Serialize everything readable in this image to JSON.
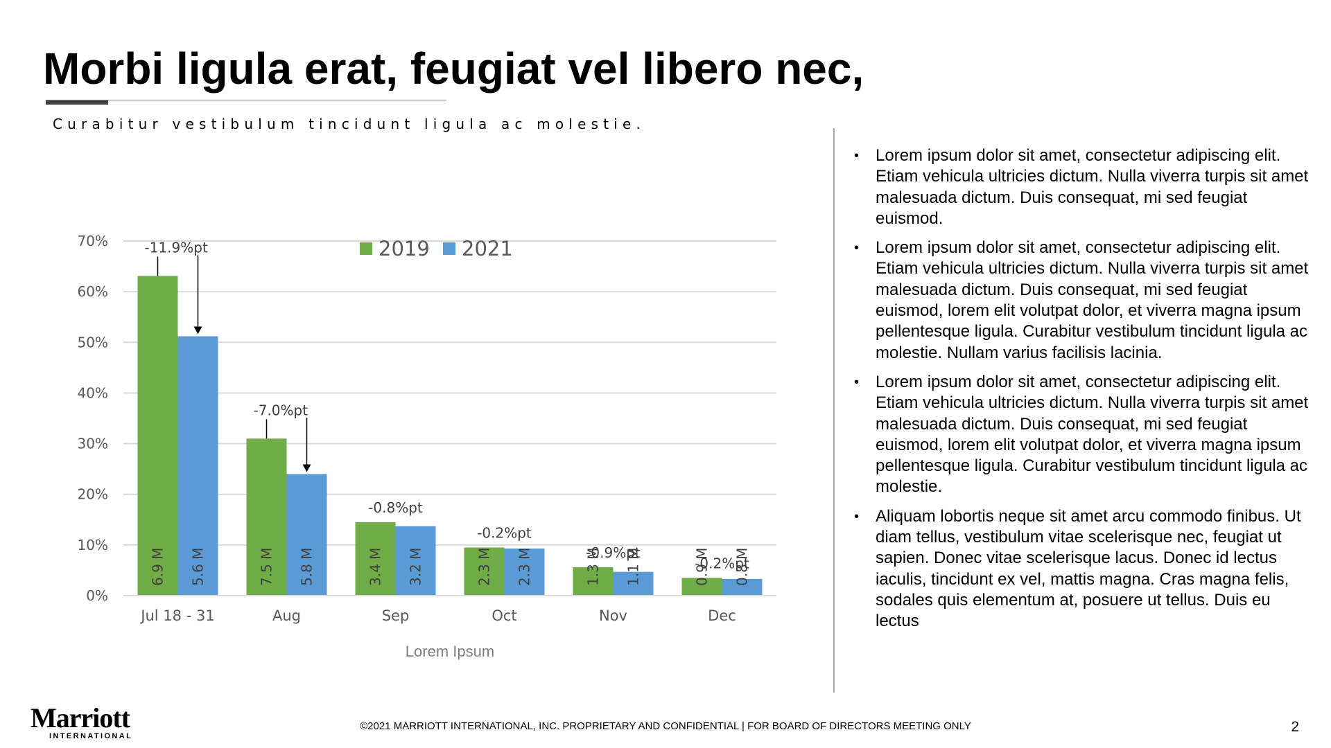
{
  "slide": {
    "title": "Morbi ligula erat, feugiat vel libero nec,",
    "subtitle": "Curabitur vestibulum tincidunt ligula ac molestie.",
    "bullets": [
      "Lorem ipsum dolor sit amet, consectetur adipiscing elit. Etiam vehicula ultricies dictum. Nulla viverra turpis sit amet malesuada dictum. Duis consequat, mi sed feugiat euismod.",
      "Lorem ipsum dolor sit amet, consectetur adipiscing elit. Etiam vehicula ultricies dictum. Nulla viverra turpis sit amet malesuada dictum. Duis consequat, mi sed feugiat euismod, lorem elit volutpat dolor, et viverra magna ipsum pellentesque ligula. Curabitur vestibulum tincidunt ligula ac molestie. Nullam varius facilisis lacinia.",
      "Lorem ipsum dolor sit amet, consectetur adipiscing elit. Etiam vehicula ultricies dictum. Nulla viverra turpis sit amet malesuada dictum. Duis consequat, mi sed feugiat euismod, lorem elit volutpat dolor, et viverra magna ipsum pellentesque ligula. Curabitur vestibulum tincidunt ligula ac molestie.",
      "Aliquam lobortis neque sit amet arcu commodo finibus. Ut diam tellus, vestibulum vitae scelerisque nec, feugiat ut sapien. Donec vitae scelerisque lacus. Donec id lectus iaculis, tincidunt ex vel, mattis magna. Cras magna felis, sodales quis elementum at, posuere ut tellus. Duis eu lectus"
    ],
    "bullet_char": "•",
    "footer": "©2021 MARRIOTT INTERNATIONAL, INC. PROPRIETARY AND CONFIDENTIAL | FOR BOARD OF DIRECTORS MEETING ONLY",
    "page_number": "2",
    "logo": {
      "wordmark": "Marriott",
      "tagline": "INTERNATIONAL"
    }
  },
  "colors": {
    "series_2019": "#70ad47",
    "series_2021": "#5b9bd5",
    "gridline": "#d9d9d9",
    "axis_text": "#595959",
    "axis_title": "#7f7f7f",
    "divider": "#a6a6a6"
  },
  "chart_data": {
    "type": "bar",
    "categories": [
      "Jul 18 - 31",
      "Aug",
      "Sep",
      "Oct",
      "Nov",
      "Dec"
    ],
    "series": [
      {
        "name": "2019",
        "values": [
          63.1,
          31.0,
          14.5,
          9.5,
          5.6,
          3.5
        ],
        "labels": [
          "6.9 M",
          "7.5 M",
          "3.4 M",
          "2.3 M",
          "1.3 M",
          "0.9 M"
        ]
      },
      {
        "name": "2021",
        "values": [
          51.2,
          24.0,
          13.7,
          9.3,
          4.7,
          3.3
        ],
        "labels": [
          "5.6 M",
          "5.8 M",
          "3.2 M",
          "2.3 M",
          "1.1 M",
          "0.8 M"
        ]
      }
    ],
    "annotations": [
      "-11.9%pt",
      "-7.0%pt",
      "-0.8%pt",
      "-0.2%pt",
      "-0.9%pt",
      "-0.2%pt"
    ],
    "arrows": [
      true,
      true,
      false,
      false,
      false,
      false
    ],
    "xlabel": "Lorem Ipsum",
    "ylabel": "",
    "ylim": [
      0,
      70
    ],
    "yticks": [
      0,
      10,
      20,
      30,
      40,
      50,
      60,
      70
    ],
    "ytick_suffix": "%",
    "grid": true,
    "legend_position": "top"
  }
}
